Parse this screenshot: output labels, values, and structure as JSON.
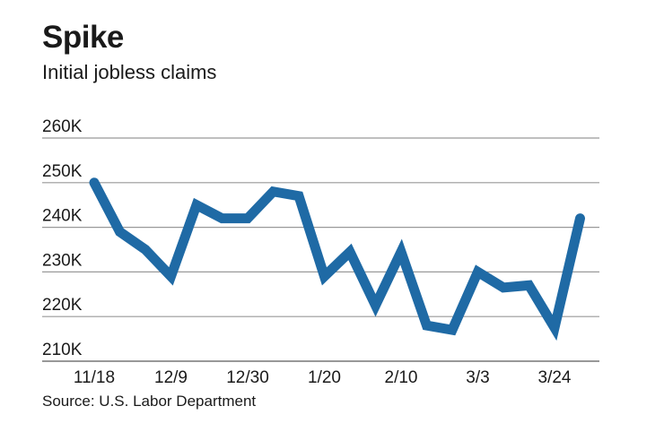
{
  "title": "Spike",
  "subtitle": "Initial jobless claims",
  "source": "Source: U.S. Labor Department",
  "chart_data": {
    "type": "line",
    "title": "Spike",
    "subtitle": "Initial jobless claims",
    "xlabel": "",
    "ylabel": "",
    "x": [
      "11/18",
      "11/25",
      "12/2",
      "12/9",
      "12/16",
      "12/23",
      "12/30",
      "1/6",
      "1/13",
      "1/20",
      "1/27",
      "2/3",
      "2/10",
      "2/17",
      "2/24",
      "3/3",
      "3/10",
      "3/17",
      "3/24",
      "3/31"
    ],
    "x_tick_labels": [
      "11/18",
      "12/9",
      "12/30",
      "1/20",
      "2/10",
      "3/3",
      "3/24"
    ],
    "y_tick_labels": [
      "210K",
      "220K",
      "230K",
      "240K",
      "250K",
      "260K"
    ],
    "y_ticks": [
      210,
      220,
      230,
      240,
      250,
      260
    ],
    "ylim": [
      210,
      260
    ],
    "y_unit": "thousands",
    "grid": true,
    "series": [
      {
        "values": [
          250,
          239,
          235,
          229,
          245,
          242,
          242,
          248,
          247,
          229,
          234.5,
          222.5,
          234.5,
          218,
          217,
          230,
          226.5,
          227,
          217.5,
          242
        ],
        "color": "#1f6aa5"
      }
    ]
  }
}
